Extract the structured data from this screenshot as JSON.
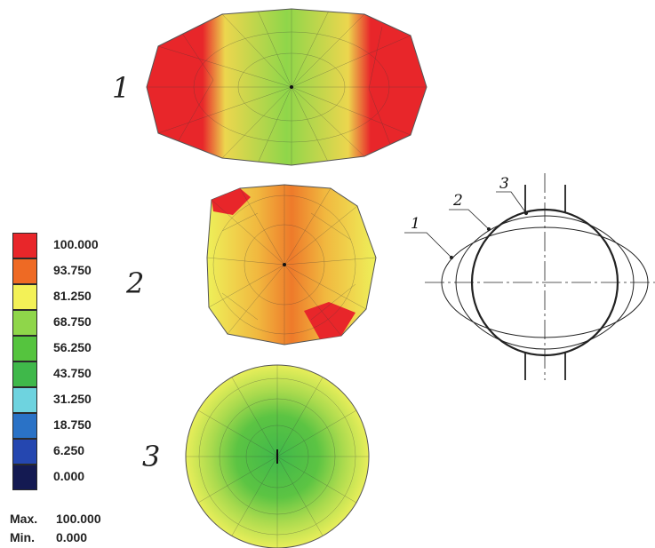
{
  "legend": {
    "entries": [
      {
        "value": "100.000",
        "color": "#e8262a"
      },
      {
        "value": "93.750",
        "color": "#ee6a24"
      },
      {
        "value": "81.250",
        "color": "#f3f157"
      },
      {
        "value": "68.750",
        "color": "#8fd64a"
      },
      {
        "value": "56.250",
        "color": "#55c43e"
      },
      {
        "value": "43.750",
        "color": "#3fb84a"
      },
      {
        "value": "31.250",
        "color": "#6ed3df"
      },
      {
        "value": "18.750",
        "color": "#2a72c6"
      },
      {
        "value": "6.250",
        "color": "#2547b0"
      },
      {
        "value": "0.000",
        "color": "#141a52"
      }
    ],
    "max_label": "Max.",
    "max_value": "100.000",
    "min_label": "Min.",
    "min_value": "0.000"
  },
  "plots": [
    {
      "label": "1"
    },
    {
      "label": "2"
    },
    {
      "label": "3"
    }
  ],
  "schematic": {
    "labels": [
      "1",
      "2",
      "3"
    ]
  }
}
